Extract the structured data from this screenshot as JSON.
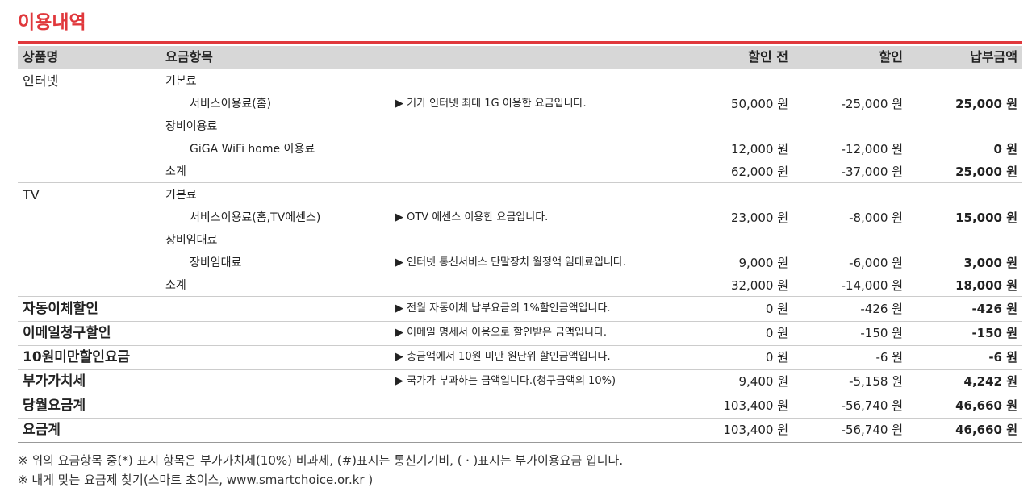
{
  "title": "이용내역",
  "table": {
    "header": [
      "상품명",
      "요금항목",
      "할인 전",
      "할인",
      "납부금액"
    ],
    "groups": [
      {
        "product": "인터넷",
        "sections": [
          {
            "name": "기본료",
            "items": [
              {
                "name": "서비스이용료(홈)",
                "note": "▶ 기가 인터넷 최대 1G 이용한 요금입니다.",
                "before": "50,000 원",
                "discount": "-25,000 원",
                "amount": "25,000 원"
              }
            ]
          },
          {
            "name": "장비이용료",
            "items": [
              {
                "name": "GiGA WiFi home 이용료",
                "before": "12,000 원",
                "discount": "-12,000 원",
                "amount": "0 원"
              }
            ]
          }
        ],
        "subtotal": {
          "name": "소계",
          "before": "62,000 원",
          "discount": "-37,000 원",
          "amount": "25,000 원"
        }
      },
      {
        "product": "TV",
        "sections": [
          {
            "name": "기본료",
            "items": [
              {
                "name": "서비스이용료(홈,TV에센스)",
                "note": "▶ OTV 에센스 이용한 요금입니다.",
                "before": "23,000 원",
                "discount": "-8,000 원",
                "amount": "15,000 원"
              }
            ]
          },
          {
            "name": "장비임대료",
            "items": [
              {
                "name": "장비임대료",
                "note": "▶ 인터넷 통신서비스 단말장치 월정액 임대료입니다.",
                "before": "9,000 원",
                "discount": "-6,000 원",
                "amount": "3,000 원"
              }
            ]
          }
        ],
        "subtotal": {
          "name": "소계",
          "before": "32,000 원",
          "discount": "-14,000 원",
          "amount": "18,000 원"
        }
      }
    ],
    "summary": [
      {
        "name": "자동이체할인",
        "note": "▶ 전월 자동이체 납부요금의 1%할인금액입니다.",
        "before": "0 원",
        "discount": "-426 원",
        "amount": "-426 원"
      },
      {
        "name": "이메일청구할인",
        "note": "▶ 이메일 명세서 이용으로 할인받은 금액입니다.",
        "before": "0 원",
        "discount": "-150 원",
        "amount": "-150 원"
      },
      {
        "name": "10원미만할인요금",
        "note": "▶ 총금액에서 10원 미만 원단위 할인금액입니다.",
        "before": "0 원",
        "discount": "-6 원",
        "amount": "-6 원"
      },
      {
        "name": "부가가치세",
        "note": "▶ 국가가 부과하는 금액입니다.(청구금액의 10%)",
        "before": "9,400 원",
        "discount": "-5,158 원",
        "amount": "4,242 원"
      },
      {
        "name": "당월요금계",
        "before": "103,400 원",
        "discount": "-56,740 원",
        "amount": "46,660 원"
      },
      {
        "name": "요금계",
        "before": "103,400 원",
        "discount": "-56,740 원",
        "amount": "46,660 원"
      }
    ]
  },
  "notes": [
    "※ 위의 요금항목 중(*)  표시 항목은 부가가치세(10%) 비과세, (#)표시는 통신기기비, (ㆍ)표시는 부가이용요금 입니다.",
    "※ 내게 맞는 요금제 찾기(스마트 초이스, www.smartchoice.or.kr )"
  ]
}
